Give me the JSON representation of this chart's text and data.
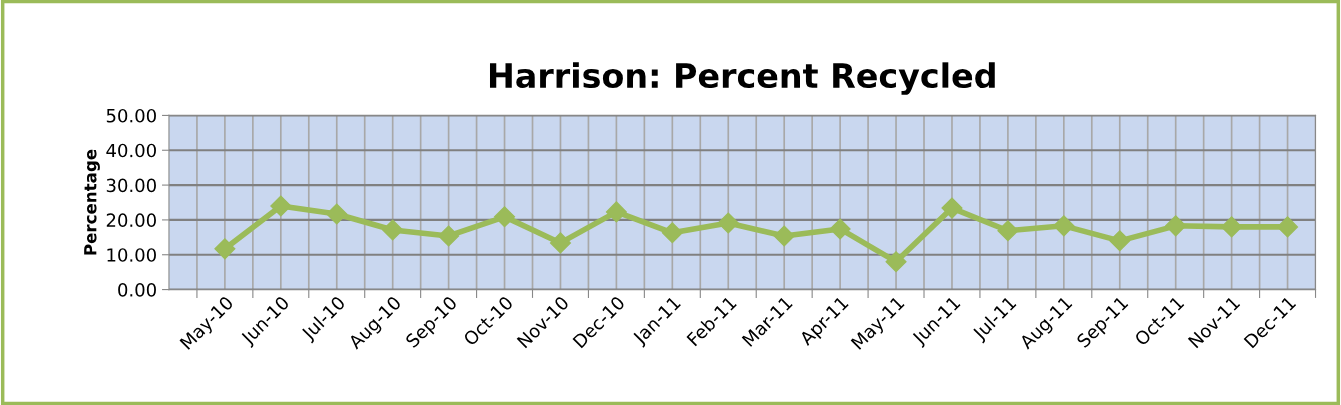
{
  "chart_data": {
    "type": "line",
    "title": "Harrison: Percent Recycled",
    "ylabel": "Percentage",
    "categories": [
      "May-10",
      "Jun-10",
      "Jul-10",
      "Aug-10",
      "Sep-10",
      "Oct-10",
      "Nov-10",
      "Dec-10",
      "Jan-11",
      "Feb-11",
      "Mar-11",
      "Apr-11",
      "May-11",
      "Jun-11",
      "Jul-11",
      "Aug-11",
      "Sep-11",
      "Oct-11",
      "Nov-11",
      "Dec-11"
    ],
    "series": [
      {
        "color": "#9bbb59",
        "values": [
          11.7,
          24.0,
          21.7,
          17.1,
          15.4,
          20.9,
          13.4,
          22.3,
          16.3,
          19.1,
          15.4,
          17.4,
          8.0,
          23.4,
          16.9,
          18.3,
          14.0,
          18.3,
          18.0,
          18.0
        ]
      }
    ],
    "ylim": [
      0,
      50
    ],
    "yticks": [
      {
        "value": 0,
        "label": "0.00"
      },
      {
        "value": 10,
        "label": "10.00"
      },
      {
        "value": 20,
        "label": "20.00"
      },
      {
        "value": 30,
        "label": "30.00"
      },
      {
        "value": 40,
        "label": "40.00"
      },
      {
        "value": 50,
        "label": "50.00"
      }
    ],
    "grid": true,
    "marker": "diamond",
    "line_style": "solid",
    "legend": false
  }
}
